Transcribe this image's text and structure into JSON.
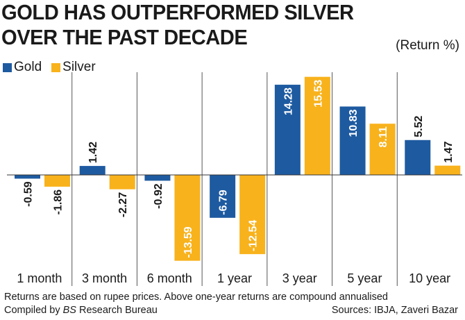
{
  "title": "GOLD HAS OUTPERFORMED SILVER OVER THE PAST DECADE",
  "unit_label": "(Return %)",
  "legend": [
    {
      "name": "Gold",
      "color": "#1e5aa0"
    },
    {
      "name": "Silver",
      "color": "#f8b21c"
    }
  ],
  "footer": {
    "note": "Returns are based on rupee prices. Above one-year returns are compound annualised",
    "compiled_prefix": "Compiled by",
    "compiled_brand": "BS",
    "compiled_suffix": "Research Bureau",
    "sources": "Sources: IBJA, Zaveri Bazar"
  },
  "chart_data": {
    "type": "bar",
    "title": "GOLD HAS OUTPERFORMED SILVER OVER THE PAST DECADE",
    "ylabel": "(Return %)",
    "categories": [
      "1 month",
      "3 month",
      "6 month",
      "1 year",
      "3 year",
      "5 year",
      "10 year"
    ],
    "series": [
      {
        "name": "Gold",
        "color": "#1e5aa0",
        "values": [
          -0.59,
          1.42,
          -0.92,
          -6.79,
          14.28,
          10.83,
          5.52
        ]
      },
      {
        "name": "Silver",
        "color": "#f8b21c",
        "values": [
          -1.86,
          -2.27,
          -13.59,
          -12.54,
          15.53,
          8.11,
          1.47
        ]
      }
    ],
    "value_labels": {
      "Gold": [
        "-0.59",
        "1.42",
        "-0.92",
        "-6.79",
        "14.28",
        "10.83",
        "5.52"
      ],
      "Silver": [
        "-1.86",
        "-2.27",
        "-13.59",
        "-12.54",
        "15.53",
        "8.11",
        "1.47"
      ]
    },
    "ylim": [
      -14,
      16
    ],
    "grid": false,
    "legend_position": "top-left"
  }
}
